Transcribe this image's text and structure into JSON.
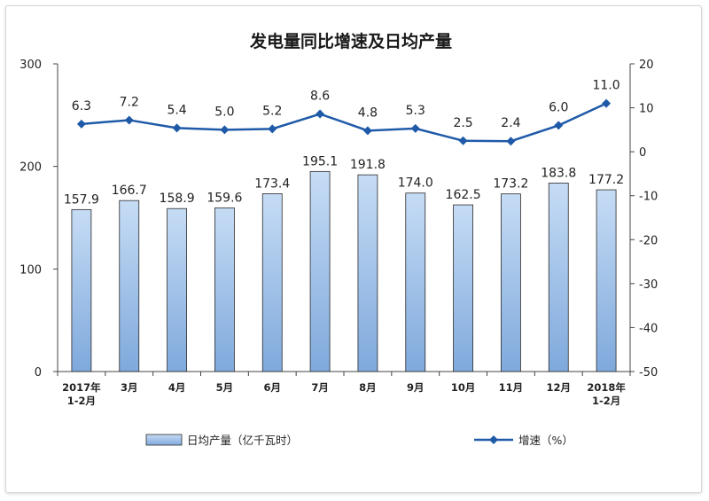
{
  "chart_data": {
    "type": "bar+line",
    "title": "发电量同比增速及日均产量",
    "categories": [
      [
        "2017年",
        "1-2月"
      ],
      [
        "3月"
      ],
      [
        "4月"
      ],
      [
        "5月"
      ],
      [
        "6月"
      ],
      [
        "7月"
      ],
      [
        "8月"
      ],
      [
        "9月"
      ],
      [
        "10月"
      ],
      [
        "11月"
      ],
      [
        "12月"
      ],
      [
        "2018年",
        "1-2月"
      ]
    ],
    "series": [
      {
        "name": "日均产量（亿千瓦时）",
        "type": "bar",
        "axis": "left",
        "values": [
          157.9,
          166.7,
          158.9,
          159.6,
          173.4,
          195.1,
          191.8,
          174.0,
          162.5,
          173.2,
          183.8,
          177.2
        ],
        "labels": [
          "157.9",
          "166.7",
          "158.9",
          "159.6",
          "173.4",
          "195.1",
          "191.8",
          "174.0",
          "162.5",
          "173.2",
          "183.8",
          "177.2"
        ]
      },
      {
        "name": "增速（%）",
        "type": "line",
        "axis": "right",
        "values": [
          6.3,
          7.2,
          5.4,
          5.0,
          5.2,
          8.6,
          4.8,
          5.3,
          2.5,
          2.4,
          6.0,
          11.0
        ],
        "labels": [
          "6.3",
          "7.2",
          "5.4",
          "5.0",
          "5.2",
          "8.6",
          "4.8",
          "5.3",
          "2.5",
          "2.4",
          "6.0",
          "11.0"
        ]
      }
    ],
    "y_left": {
      "min": 0,
      "max": 300,
      "ticks": [
        0,
        100,
        200,
        300
      ]
    },
    "y_right": {
      "min": -50,
      "max": 20,
      "ticks": [
        20,
        10,
        0,
        -10,
        -20,
        -30,
        -40,
        -50
      ]
    },
    "legend_position": "bottom",
    "grid": false,
    "colors": {
      "bar_fill_top": "#c6dcf5",
      "bar_fill_bottom": "#7fa9dc",
      "bar_stroke": "#2b2b2b",
      "line": "#1f5aa8",
      "axis": "#444444"
    }
  }
}
